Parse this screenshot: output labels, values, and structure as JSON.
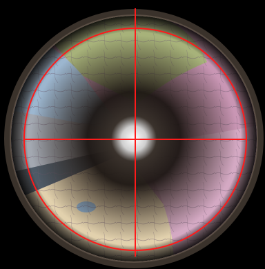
{
  "overlay": {
    "color": "#ff1a1a"
  },
  "palette": {
    "background": "#000000",
    "lens_rim": "#2b2520",
    "map_pink": "#c996b4",
    "map_green": "#a7b27a",
    "map_blue": "#9cb6cf",
    "map_cream": "#e2d1ad",
    "map_grey": "#a3a8b1",
    "tunnel_dark": "#1a1411",
    "center_white": "#f0f0f0"
  }
}
